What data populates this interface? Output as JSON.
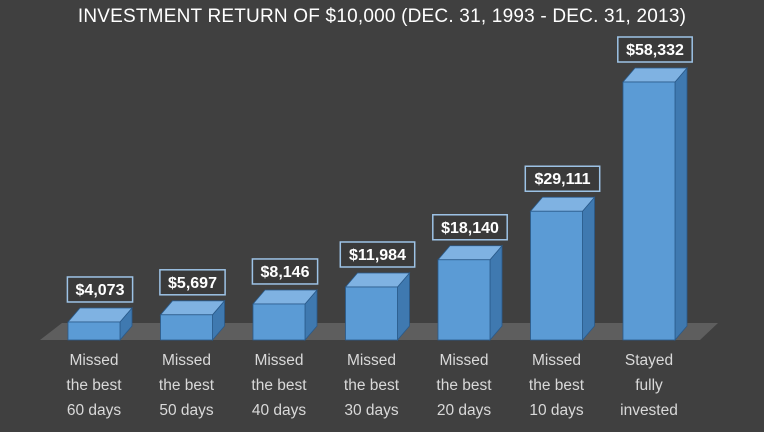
{
  "chart_data": {
    "type": "bar",
    "title": "INVESTMENT RETURN OF $10,000 (DEC. 31, 1993 - DEC. 31, 2013)",
    "categories": [
      "Missed\nthe best\n60 days",
      "Missed\nthe best\n50 days",
      "Missed\nthe best\n40 days",
      "Missed\nthe best\n30 days",
      "Missed\nthe best\n20 days",
      "Missed\nthe best\n10 days",
      "Stayed\nfully\ninvested"
    ],
    "values": [
      4073,
      5697,
      8146,
      11984,
      18140,
      29111,
      58332
    ],
    "data_labels": [
      "$4,073",
      "$5,697",
      "$8,146",
      "$11,984",
      "$18,140",
      "$29,111",
      "$58,332"
    ],
    "ylim": [
      0,
      60000
    ],
    "grid": false,
    "legend": "none",
    "colors": {
      "background": "#404040",
      "bar_front": "#5b9bd5",
      "bar_side": "#3f79b0",
      "bar_top": "#7fb2e2",
      "bar_edge": "#2a5a8a",
      "floor": "#5e5e5e",
      "label_box_fill": "#3a3a3a",
      "label_box_stroke": "#9dc3e6",
      "label_text": "#ffffff",
      "category_text": "#d9d9d9"
    }
  }
}
